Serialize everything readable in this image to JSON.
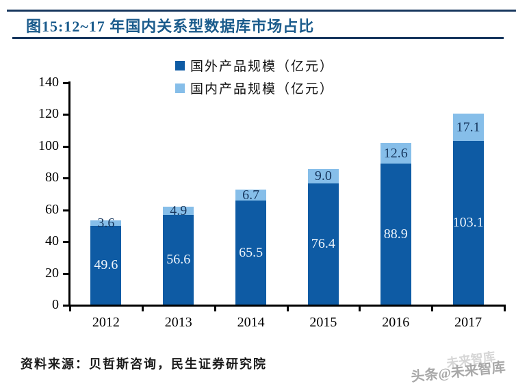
{
  "header": {
    "title": "图15:12~17 年国内关系型数据库市场占比"
  },
  "footer": {
    "source": "资料来源：贝哲斯咨询，民生证券研究院",
    "watermark": "头条@未来智库",
    "watermark_ghost": "未来智库"
  },
  "colors": {
    "title_text": "#1A5B8C",
    "rule": "#17375E",
    "foreign_bar": "#0E5BA4",
    "domestic_bar": "#86BEE9",
    "axis": "#000000"
  },
  "chart_data": {
    "type": "bar",
    "stacked": true,
    "title": "图15:12~17 年国内关系型数据库市场占比",
    "categories": [
      "2012",
      "2013",
      "2014",
      "2015",
      "2016",
      "2017"
    ],
    "series": [
      {
        "name": "国外产品规模（亿元）",
        "values": [
          49.6,
          56.6,
          65.5,
          76.4,
          88.9,
          103.1
        ],
        "labels": [
          "49.6",
          "56.6",
          "65.5",
          "76.4",
          "88.9",
          "103.1"
        ],
        "color": "#0E5BA4",
        "label_color": "#EDF4FB"
      },
      {
        "name": "国内产品规模（亿元）",
        "values": [
          3.6,
          4.9,
          6.7,
          9.0,
          12.6,
          17.1
        ],
        "labels": [
          "3.6",
          "4.9",
          "6.7",
          "9.0",
          "12.6",
          "17.1"
        ],
        "color": "#86BEE9",
        "label_color": "#17375E"
      }
    ],
    "ylim": [
      0,
      140
    ],
    "yticks": [
      0,
      20,
      40,
      60,
      80,
      100,
      120,
      140
    ],
    "grid": false,
    "legend_position": "top-center"
  }
}
